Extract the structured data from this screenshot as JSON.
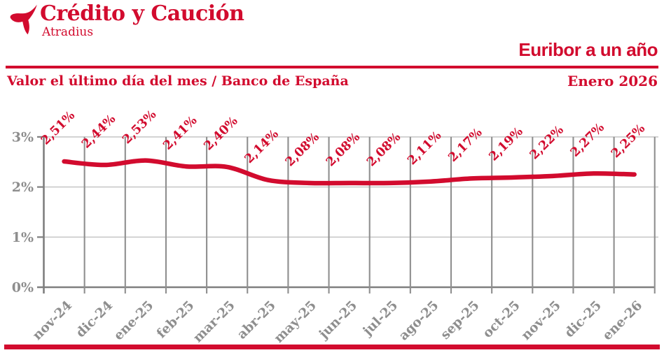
{
  "brand": {
    "name": "Crédito y Caución",
    "subname": "Atradius"
  },
  "header": {
    "title": "Euribor a un año",
    "subtitle_left": "Valor el último día del mes / Banco de España",
    "subtitle_right": "Enero 2026"
  },
  "colors": {
    "accent_red": "#d20b2e",
    "axis_text_gray": "#8e8e8e",
    "grid_dark": "#8f8f8f",
    "grid_light": "#c9c9c9",
    "axis_dark": "#7f7f7f"
  },
  "chart_data": {
    "type": "line",
    "title": "Euribor a un año",
    "categories": [
      "nov-24",
      "dic-24",
      "ene-25",
      "feb-25",
      "mar-25",
      "abr-25",
      "may-25",
      "jun-25",
      "jul-25",
      "ago-25",
      "sep-25",
      "oct-25",
      "nov-25",
      "dic-25",
      "ene-26"
    ],
    "values": [
      2.51,
      2.44,
      2.53,
      2.41,
      2.4,
      2.14,
      2.08,
      2.08,
      2.08,
      2.11,
      2.17,
      2.19,
      2.22,
      2.27,
      2.25
    ],
    "value_labels": [
      "2,51%",
      "2,44%",
      "2,53%",
      "2,41%",
      "2,40%",
      "2,14%",
      "2,08%",
      "2,08%",
      "2,08%",
      "2,11%",
      "2,17%",
      "2,19%",
      "2,22%",
      "2,27%",
      "2,25%"
    ],
    "ytick_labels": [
      "0%",
      "1%",
      "2%",
      "3%"
    ],
    "yticks": [
      0,
      1,
      2,
      3
    ],
    "ylim": [
      0,
      3
    ],
    "grid": true,
    "legend": "none",
    "line_color": "#d20b2e"
  }
}
